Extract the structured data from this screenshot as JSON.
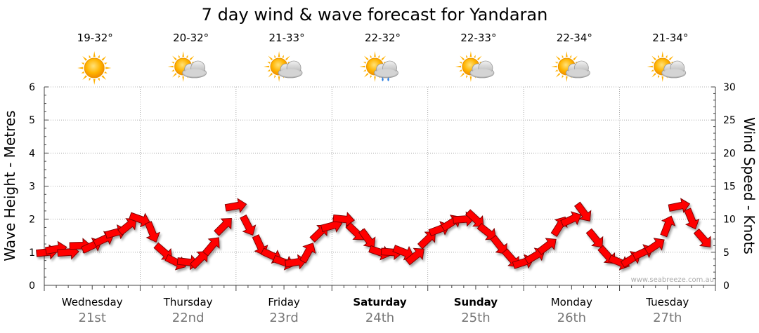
{
  "chart_data": {
    "type": "line",
    "title": "7 day wind & wave forecast for Yandaran",
    "ylabel_left": "Wave Height - Metres",
    "ylabel_right": "Wind Speed - Knots",
    "ylim_left": [
      0,
      6
    ],
    "ylim_right": [
      0,
      30
    ],
    "yticks_left": [
      "0",
      "1",
      "2",
      "3",
      "4",
      "5",
      "6"
    ],
    "yticks_right": [
      "0",
      "5",
      "10",
      "15",
      "20",
      "25",
      "30"
    ],
    "grid": true,
    "watermark": "www.seabreeze.com.au",
    "days": [
      {
        "name": "Wednesday",
        "date": "21st",
        "temp": "19-32°",
        "weather": "sunny-icon",
        "bold": false
      },
      {
        "name": "Thursday",
        "date": "22nd",
        "temp": "20-32°",
        "weather": "partly-cloudy-icon",
        "bold": false
      },
      {
        "name": "Friday",
        "date": "23rd",
        "temp": "21-33°",
        "weather": "partly-cloudy-icon",
        "bold": false
      },
      {
        "name": "Saturday",
        "date": "24th",
        "temp": "22-32°",
        "weather": "cloud-shower-icon",
        "bold": true
      },
      {
        "name": "Sunday",
        "date": "25th",
        "temp": "22-33°",
        "weather": "partly-cloudy-icon",
        "bold": true
      },
      {
        "name": "Monday",
        "date": "26th",
        "temp": "22-34°",
        "weather": "partly-cloudy-icon",
        "bold": false
      },
      {
        "name": "Tuesday",
        "date": "27th",
        "temp": "21-34°",
        "weather": "partly-cloudy-icon",
        "bold": false
      }
    ],
    "series": [
      {
        "name": "Wind Speed",
        "axis": "right",
        "color": "#ff0000",
        "x_hours": [
          0,
          3,
          6,
          9,
          12,
          15,
          18,
          21,
          24,
          27,
          30,
          33,
          36,
          39,
          42,
          45,
          48,
          51,
          54,
          57,
          60,
          63,
          66,
          69,
          72,
          75,
          78,
          81,
          84,
          87,
          90,
          93,
          96,
          99,
          102,
          105,
          108,
          111,
          114,
          117,
          120,
          123,
          126,
          129,
          132,
          135,
          138,
          141,
          144,
          147,
          150,
          153,
          156,
          159,
          162,
          165
        ],
        "values": [
          5,
          5.5,
          5,
          6,
          6,
          7,
          8,
          9,
          10,
          8,
          5,
          3.5,
          3.5,
          4,
          6,
          9,
          12,
          9,
          6,
          4.5,
          3.5,
          3.5,
          5,
          8,
          9,
          10,
          8,
          7,
          5,
          5,
          5,
          4.5,
          7,
          8.5,
          9.5,
          10,
          10,
          8,
          6,
          4,
          3.5,
          4.5,
          6,
          9,
          10,
          11,
          7,
          4.5,
          3.5,
          4,
          5,
          6,
          9,
          12,
          10,
          7
        ]
      }
    ]
  }
}
